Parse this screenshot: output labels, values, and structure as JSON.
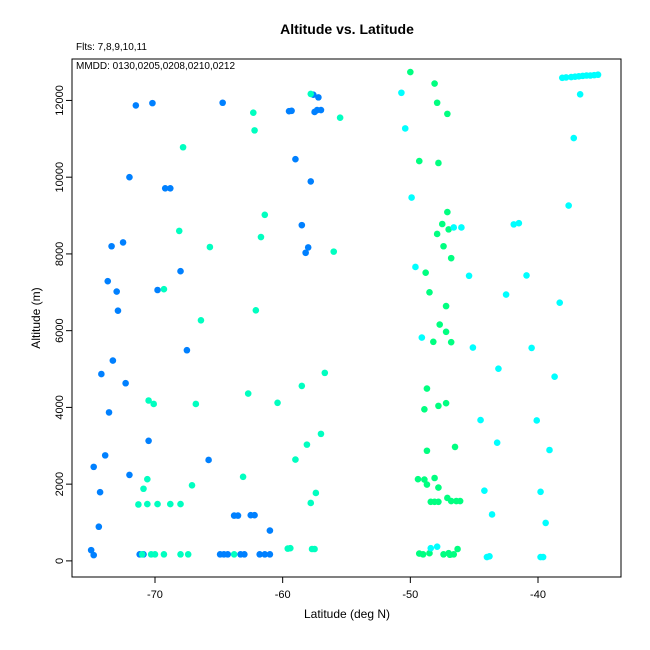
{
  "chart_data": {
    "type": "scatter",
    "title": "Altitude vs. Latitude",
    "notes": [
      "Flts: 7,8,9,10,11",
      "MMDD: 0130,0205,0208,0210,0212"
    ],
    "xlabel": "Latitude (deg N)",
    "ylabel": "Altitude (m)",
    "xlim": [
      -76.5,
      -33.5
    ],
    "ylim": [
      -420,
      13080
    ],
    "xticks": [
      -70,
      -60,
      -50,
      -40
    ],
    "yticks": [
      0,
      2000,
      4000,
      6000,
      8000,
      10000,
      12000
    ],
    "grid": false,
    "series": [
      {
        "color": "#0080ff",
        "points": [
          [
            -71.5,
            11870
          ],
          [
            -70.2,
            11930
          ],
          [
            -64.7,
            11940
          ],
          [
            -59.5,
            11720
          ],
          [
            -59.3,
            11730
          ],
          [
            -57.6,
            12150
          ],
          [
            -57.2,
            12080
          ],
          [
            -57.5,
            11700
          ],
          [
            -57.3,
            11750
          ],
          [
            -57.0,
            11750
          ],
          [
            -59.0,
            10470
          ],
          [
            -57.8,
            9890
          ],
          [
            -72.0,
            10000
          ],
          [
            -69.2,
            9710
          ],
          [
            -68.8,
            9710
          ],
          [
            -58.5,
            8750
          ],
          [
            -72.5,
            8300
          ],
          [
            -73.4,
            8200
          ],
          [
            -58.0,
            8170
          ],
          [
            -58.2,
            8030
          ],
          [
            -68.0,
            7550
          ],
          [
            -73.7,
            7290
          ],
          [
            -73.0,
            7020
          ],
          [
            -69.8,
            7060
          ],
          [
            -72.9,
            6520
          ],
          [
            -67.5,
            5490
          ],
          [
            -74.2,
            4870
          ],
          [
            -73.3,
            5220
          ],
          [
            -72.3,
            4630
          ],
          [
            -73.6,
            3870
          ],
          [
            -70.5,
            3130
          ],
          [
            -73.9,
            2750
          ],
          [
            -74.8,
            2450
          ],
          [
            -72.0,
            2240
          ],
          [
            -65.8,
            2630
          ],
          [
            -74.3,
            1790
          ],
          [
            -74.4,
            890
          ],
          [
            -63.8,
            1180
          ],
          [
            -63.5,
            1180
          ],
          [
            -62.5,
            1190
          ],
          [
            -62.2,
            1190
          ],
          [
            -61.0,
            790
          ],
          [
            -75.0,
            280
          ],
          [
            -74.8,
            150
          ],
          [
            -71.2,
            170
          ],
          [
            -70.9,
            170
          ],
          [
            -64.9,
            170
          ],
          [
            -64.6,
            170
          ],
          [
            -64.3,
            170
          ],
          [
            -63.3,
            170
          ],
          [
            -63.0,
            170
          ],
          [
            -61.8,
            170
          ],
          [
            -61.4,
            170
          ],
          [
            -61.0,
            170
          ]
        ]
      },
      {
        "color": "#00ffc0",
        "points": [
          [
            -62.3,
            11680
          ],
          [
            -62.2,
            11220
          ],
          [
            -57.8,
            12170
          ],
          [
            -55.5,
            11550
          ],
          [
            -67.8,
            10780
          ],
          [
            -61.4,
            9020
          ],
          [
            -61.7,
            8440
          ],
          [
            -68.1,
            8600
          ],
          [
            -65.7,
            8180
          ],
          [
            -56.0,
            8060
          ],
          [
            -69.3,
            7080
          ],
          [
            -66.4,
            6270
          ],
          [
            -62.1,
            6530
          ],
          [
            -56.7,
            4900
          ],
          [
            -58.5,
            4560
          ],
          [
            -60.4,
            4120
          ],
          [
            -62.7,
            4360
          ],
          [
            -66.8,
            4090
          ],
          [
            -70.5,
            4180
          ],
          [
            -70.1,
            4090
          ],
          [
            -57.0,
            3310
          ],
          [
            -58.1,
            3030
          ],
          [
            -59.0,
            2640
          ],
          [
            -63.1,
            2190
          ],
          [
            -67.1,
            1970
          ],
          [
            -70.6,
            2130
          ],
          [
            -70.9,
            1880
          ],
          [
            -71.3,
            1470
          ],
          [
            -70.6,
            1480
          ],
          [
            -69.8,
            1480
          ],
          [
            -68.8,
            1480
          ],
          [
            -68.0,
            1480
          ],
          [
            -57.4,
            1770
          ],
          [
            -57.8,
            1510
          ],
          [
            -59.6,
            320
          ],
          [
            -59.4,
            330
          ],
          [
            -57.7,
            310
          ],
          [
            -57.5,
            310
          ],
          [
            -71.0,
            170
          ],
          [
            -70.3,
            170
          ],
          [
            -70.0,
            170
          ],
          [
            -69.3,
            170
          ],
          [
            -68.0,
            170
          ],
          [
            -67.4,
            170
          ],
          [
            -63.8,
            170
          ]
        ]
      },
      {
        "color": "#00ff80",
        "points": [
          [
            -50.0,
            12740
          ],
          [
            -48.1,
            12440
          ],
          [
            -47.9,
            11940
          ],
          [
            -47.1,
            11650
          ],
          [
            -49.3,
            10420
          ],
          [
            -47.8,
            10370
          ],
          [
            -47.1,
            9090
          ],
          [
            -47.5,
            8780
          ],
          [
            -47.0,
            8640
          ],
          [
            -47.9,
            8520
          ],
          [
            -47.4,
            8200
          ],
          [
            -46.8,
            7890
          ],
          [
            -48.8,
            7510
          ],
          [
            -48.5,
            7000
          ],
          [
            -47.2,
            6640
          ],
          [
            -47.7,
            6160
          ],
          [
            -47.2,
            5970
          ],
          [
            -46.8,
            5700
          ],
          [
            -48.2,
            5710
          ],
          [
            -48.7,
            4490
          ],
          [
            -47.8,
            4040
          ],
          [
            -47.2,
            4110
          ],
          [
            -48.9,
            3950
          ],
          [
            -48.7,
            2870
          ],
          [
            -46.5,
            2970
          ],
          [
            -49.4,
            2130
          ],
          [
            -48.9,
            2120
          ],
          [
            -48.1,
            2160
          ],
          [
            -47.8,
            1910
          ],
          [
            -48.7,
            1990
          ],
          [
            -48.4,
            1540
          ],
          [
            -48.1,
            1540
          ],
          [
            -47.8,
            1540
          ],
          [
            -47.1,
            1640
          ],
          [
            -46.8,
            1560
          ],
          [
            -46.4,
            1560
          ],
          [
            -46.1,
            1560
          ],
          [
            -46.3,
            310
          ],
          [
            -46.6,
            170
          ],
          [
            -47.0,
            200
          ],
          [
            -47.4,
            170
          ],
          [
            -48.5,
            200
          ],
          [
            -49.0,
            170
          ],
          [
            -49.3,
            190
          ],
          [
            -46.9,
            160
          ]
        ]
      },
      {
        "color": "#00ffff",
        "points": [
          [
            -50.7,
            12200
          ],
          [
            -50.4,
            11270
          ],
          [
            -49.9,
            9470
          ],
          [
            -49.6,
            7660
          ],
          [
            -45.4,
            7430
          ],
          [
            -46.6,
            8690
          ],
          [
            -46.0,
            8690
          ],
          [
            -41.9,
            8770
          ],
          [
            -41.5,
            8800
          ],
          [
            -40.9,
            7440
          ],
          [
            -42.5,
            6940
          ],
          [
            -38.3,
            6730
          ],
          [
            -40.5,
            5550
          ],
          [
            -45.1,
            5560
          ],
          [
            -43.1,
            5010
          ],
          [
            -38.7,
            4800
          ],
          [
            -44.5,
            3670
          ],
          [
            -40.1,
            3660
          ],
          [
            -43.2,
            3080
          ],
          [
            -39.1,
            2890
          ],
          [
            -44.2,
            1830
          ],
          [
            -39.8,
            1800
          ],
          [
            -43.6,
            1210
          ],
          [
            -39.4,
            990
          ],
          [
            -49.1,
            5820
          ],
          [
            -48.4,
            330
          ],
          [
            -47.9,
            370
          ],
          [
            -44.0,
            100
          ],
          [
            -43.8,
            120
          ],
          [
            -39.8,
            100
          ],
          [
            -39.6,
            100
          ],
          [
            -37.6,
            9260
          ],
          [
            -37.2,
            11020
          ],
          [
            -36.7,
            12160
          ],
          [
            -38.1,
            12590
          ],
          [
            -37.8,
            12600
          ],
          [
            -37.4,
            12610
          ],
          [
            -37.1,
            12620
          ],
          [
            -36.8,
            12630
          ],
          [
            -36.5,
            12640
          ],
          [
            -36.2,
            12650
          ],
          [
            -35.9,
            12650
          ],
          [
            -35.6,
            12660
          ],
          [
            -35.3,
            12670
          ]
        ]
      }
    ]
  }
}
